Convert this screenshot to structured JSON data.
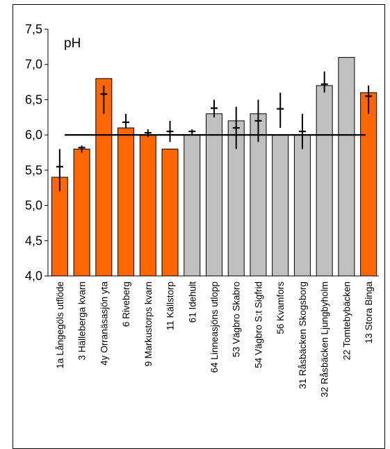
{
  "chart_data": {
    "type": "bar",
    "ylabel": "pH",
    "ylim": [
      4.0,
      7.5
    ],
    "yticks": [
      "4,0",
      "4,5",
      "5,0",
      "5,5",
      "6,0",
      "6,5",
      "7,0",
      "7,5"
    ],
    "reference_line": 6.0,
    "grid": false,
    "categories": [
      "1a Långegöls utflöde",
      "3 Hälleberga kvarn",
      "4y Orranäsasjön yta",
      "6 Riveberg",
      "9 Markustorps kvarn",
      "11 Källstorp",
      "61 Idehult",
      "64 Linneasjöns utlopp",
      "53 Vägbro Skabro",
      "54 Vägbro S:t Sigfrid",
      "56 Kvamfors",
      "31 Råsbäcken Skogsborg",
      "32 Råsbäcken Ljungbyholm",
      "22 Tomtebybäcken",
      "13 Stora Binga"
    ],
    "values": [
      5.4,
      5.8,
      6.8,
      6.1,
      6.0,
      5.8,
      6.0,
      6.3,
      6.2,
      6.3,
      6.0,
      6.0,
      6.7,
      7.1,
      6.6
    ],
    "bar_colors": [
      "orange",
      "orange",
      "orange",
      "orange",
      "orange",
      "orange",
      "gray",
      "gray",
      "gray",
      "gray",
      "gray",
      "gray",
      "gray",
      "gray",
      "orange"
    ],
    "markers": [
      {
        "mean": 5.55,
        "low": 5.2,
        "high": 5.8
      },
      {
        "mean": 5.82,
        "low": 5.75,
        "high": 5.85
      },
      {
        "mean": 6.58,
        "low": 6.3,
        "high": 6.7
      },
      {
        "mean": 6.18,
        "low": 6.1,
        "high": 6.3
      },
      {
        "mean": 6.03,
        "low": 5.97,
        "high": 6.08
      },
      {
        "mean": 6.05,
        "low": 5.9,
        "high": 6.2
      },
      {
        "mean": 6.05,
        "low": 6.0,
        "high": 6.08
      },
      {
        "mean": 6.38,
        "low": 6.25,
        "high": 6.5
      },
      {
        "mean": 6.1,
        "low": 5.8,
        "high": 6.4
      },
      {
        "mean": 6.2,
        "low": 5.9,
        "high": 6.5
      },
      {
        "mean": 6.37,
        "low": 6.1,
        "high": 6.6
      },
      {
        "mean": 6.05,
        "low": 5.8,
        "high": 6.3
      },
      {
        "mean": 6.72,
        "low": 6.6,
        "high": 6.9
      },
      {
        "mean": null,
        "low": null,
        "high": null
      },
      {
        "mean": 6.55,
        "low": 6.3,
        "high": 6.7
      }
    ]
  },
  "colors": {
    "orange": "#FF6600",
    "gray": "#C0C0C0",
    "line": "#000000"
  }
}
